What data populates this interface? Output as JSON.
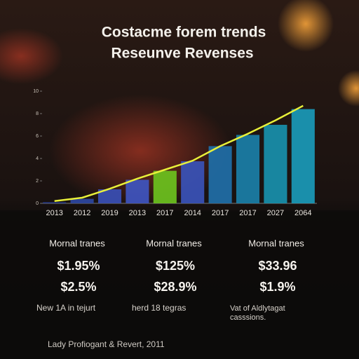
{
  "chart_data": {
    "type": "bar",
    "title": "Costacme forem trends",
    "subtitle": "Reseunve Revenses",
    "categories": [
      "2013",
      "2012",
      "2019",
      "2013",
      "2017",
      "2014",
      "2017",
      "2017",
      "2027",
      "2064"
    ],
    "series": [
      {
        "type": "bar",
        "colors": [
          "#2a3f8f",
          "#2e46a0",
          "#3a4fb5",
          "#3f55c0",
          "#6cc21e",
          "#3a52b8",
          "#1f6fa8",
          "#1a7fa8",
          "#1890ad",
          "#1a9ab8"
        ],
        "values": [
          0.1,
          0.4,
          1.25,
          2.1,
          2.9,
          3.75,
          5.1,
          6.1,
          7.0,
          8.4
        ]
      },
      {
        "type": "line",
        "color": "#e8f03a",
        "values": [
          0.2,
          0.5,
          1.3,
          2.2,
          3.0,
          3.8,
          5.1,
          6.2,
          7.4,
          8.7
        ]
      }
    ],
    "ylim": [
      0,
      10
    ],
    "yticks": [
      0,
      2,
      4,
      6,
      8,
      10
    ]
  },
  "stats": [
    {
      "label": "Mornal tranes",
      "values": [
        "$1.95%",
        "$2.5%"
      ],
      "note": "New 1A in tejurt"
    },
    {
      "label": "Mornal tranes",
      "values": [
        "$125%",
        "$28.9%"
      ],
      "note": "herd 18 tegras"
    },
    {
      "label": "Mornal tranes",
      "values": [
        "$33.96",
        "$1.9%"
      ],
      "note": "Vat of Aldlytagat casssions."
    }
  ],
  "footer": "Lady Profiogant & Revert, 2011"
}
